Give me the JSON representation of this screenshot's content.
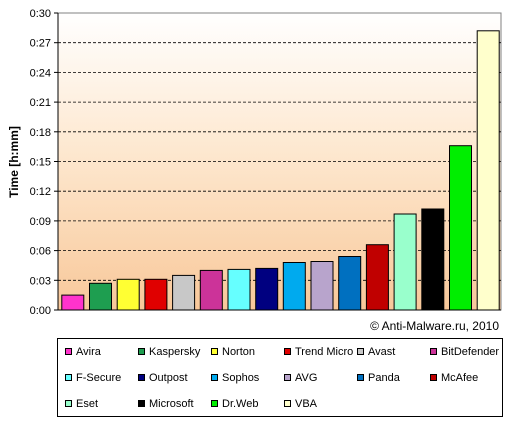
{
  "chart_data": {
    "type": "bar",
    "ylabel": "Time [h:mm]",
    "ylim": [
      0,
      0.3
    ],
    "y_ticks": [
      "0:00",
      "0:03",
      "0:06",
      "0:09",
      "0:12",
      "0:15",
      "0:18",
      "0:21",
      "0:24",
      "0:27",
      "0:30"
    ],
    "grid": "horizontal dashed",
    "background": "gradient peach to white",
    "annotation": "© Anti-Malware.ru,  2010",
    "legend_position": "bottom",
    "categories": [
      "Avira",
      "Kaspersky",
      "Norton",
      "Trend Micro",
      "Avast",
      "BitDefender",
      "F-Secure",
      "Outpost",
      "Sophos",
      "AVG",
      "Panda",
      "McAfee",
      "Eset",
      "Microsoft",
      "Dr.Web",
      "VBA"
    ],
    "values": [
      0.015,
      0.027,
      0.031,
      0.031,
      0.035,
      0.04,
      0.041,
      0.042,
      0.048,
      0.049,
      0.054,
      0.066,
      0.097,
      0.102,
      0.166,
      0.282
    ],
    "colors": [
      "#ff33cc",
      "#1e9e50",
      "#ffff33",
      "#e00000",
      "#c8c8c8",
      "#cc3399",
      "#66ffff",
      "#000080",
      "#00aaee",
      "#b8a4cc",
      "#0070c0",
      "#c00000",
      "#99ffcc",
      "#000000",
      "#00ee00",
      "#ffffcc"
    ]
  }
}
